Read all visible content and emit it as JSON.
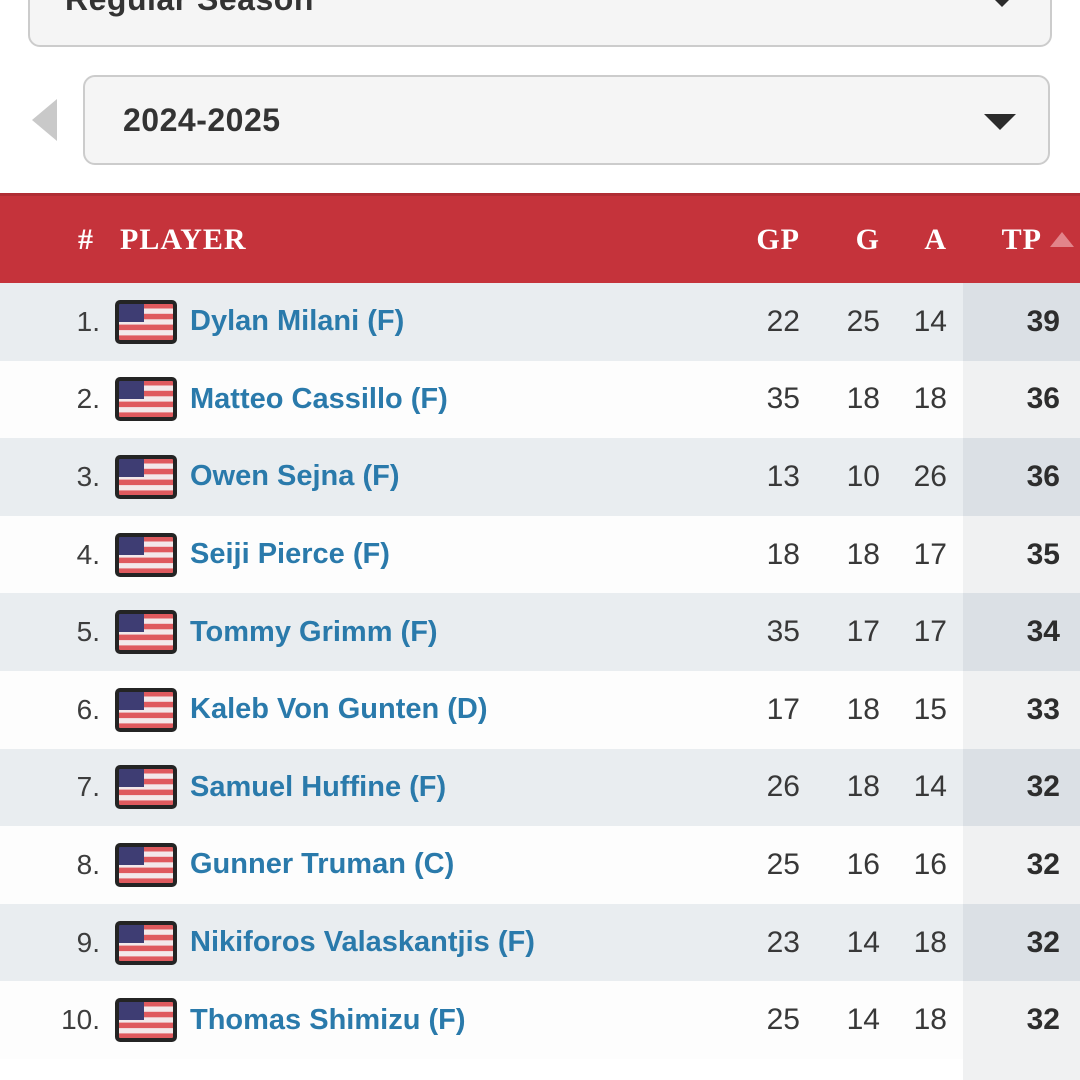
{
  "filters": {
    "season_type_value": "Regular Season",
    "season_value": "2024-2025"
  },
  "table": {
    "columns": {
      "rank": "#",
      "player": "PLAYER",
      "gp": "GP",
      "g": "G",
      "a": "A",
      "tp": "TP"
    },
    "sort": {
      "column": "TP",
      "direction": "ascending-arrow"
    },
    "rows": [
      {
        "rank": "1.",
        "flag": "usa",
        "name": "Dylan Milani (F)",
        "gp": "22",
        "g": "25",
        "a": "14",
        "tp": "39"
      },
      {
        "rank": "2.",
        "flag": "usa",
        "name": "Matteo Cassillo (F)",
        "gp": "35",
        "g": "18",
        "a": "18",
        "tp": "36"
      },
      {
        "rank": "3.",
        "flag": "usa",
        "name": "Owen Sejna (F)",
        "gp": "13",
        "g": "10",
        "a": "26",
        "tp": "36"
      },
      {
        "rank": "4.",
        "flag": "usa",
        "name": "Seiji Pierce (F)",
        "gp": "18",
        "g": "18",
        "a": "17",
        "tp": "35"
      },
      {
        "rank": "5.",
        "flag": "usa",
        "name": "Tommy Grimm (F)",
        "gp": "35",
        "g": "17",
        "a": "17",
        "tp": "34"
      },
      {
        "rank": "6.",
        "flag": "usa",
        "name": "Kaleb Von Gunten (D)",
        "gp": "17",
        "g": "18",
        "a": "15",
        "tp": "33"
      },
      {
        "rank": "7.",
        "flag": "usa",
        "name": "Samuel Huffine (F)",
        "gp": "26",
        "g": "18",
        "a": "14",
        "tp": "32"
      },
      {
        "rank": "8.",
        "flag": "usa",
        "name": "Gunner Truman (C)",
        "gp": "25",
        "g": "16",
        "a": "16",
        "tp": "32"
      },
      {
        "rank": "9.",
        "flag": "usa",
        "name": "Nikiforos Valaskantjis (F)",
        "gp": "23",
        "g": "14",
        "a": "18",
        "tp": "32"
      },
      {
        "rank": "10.",
        "flag": "usa",
        "name": "Thomas Shimizu (F)",
        "gp": "25",
        "g": "14",
        "a": "18",
        "tp": "32"
      }
    ]
  },
  "colors": {
    "header_bg": "#c5333b",
    "header_text": "#ffffff",
    "sort_arrow": "#e2848a",
    "player_link": "#2a7aab",
    "row_stripe": "#e9edf0",
    "tp_col_stripe": "#dbe0e5",
    "tp_col_plain": "#f0f1f2",
    "dropdown_bg": "#f5f5f5",
    "dropdown_border": "#cccccc"
  }
}
